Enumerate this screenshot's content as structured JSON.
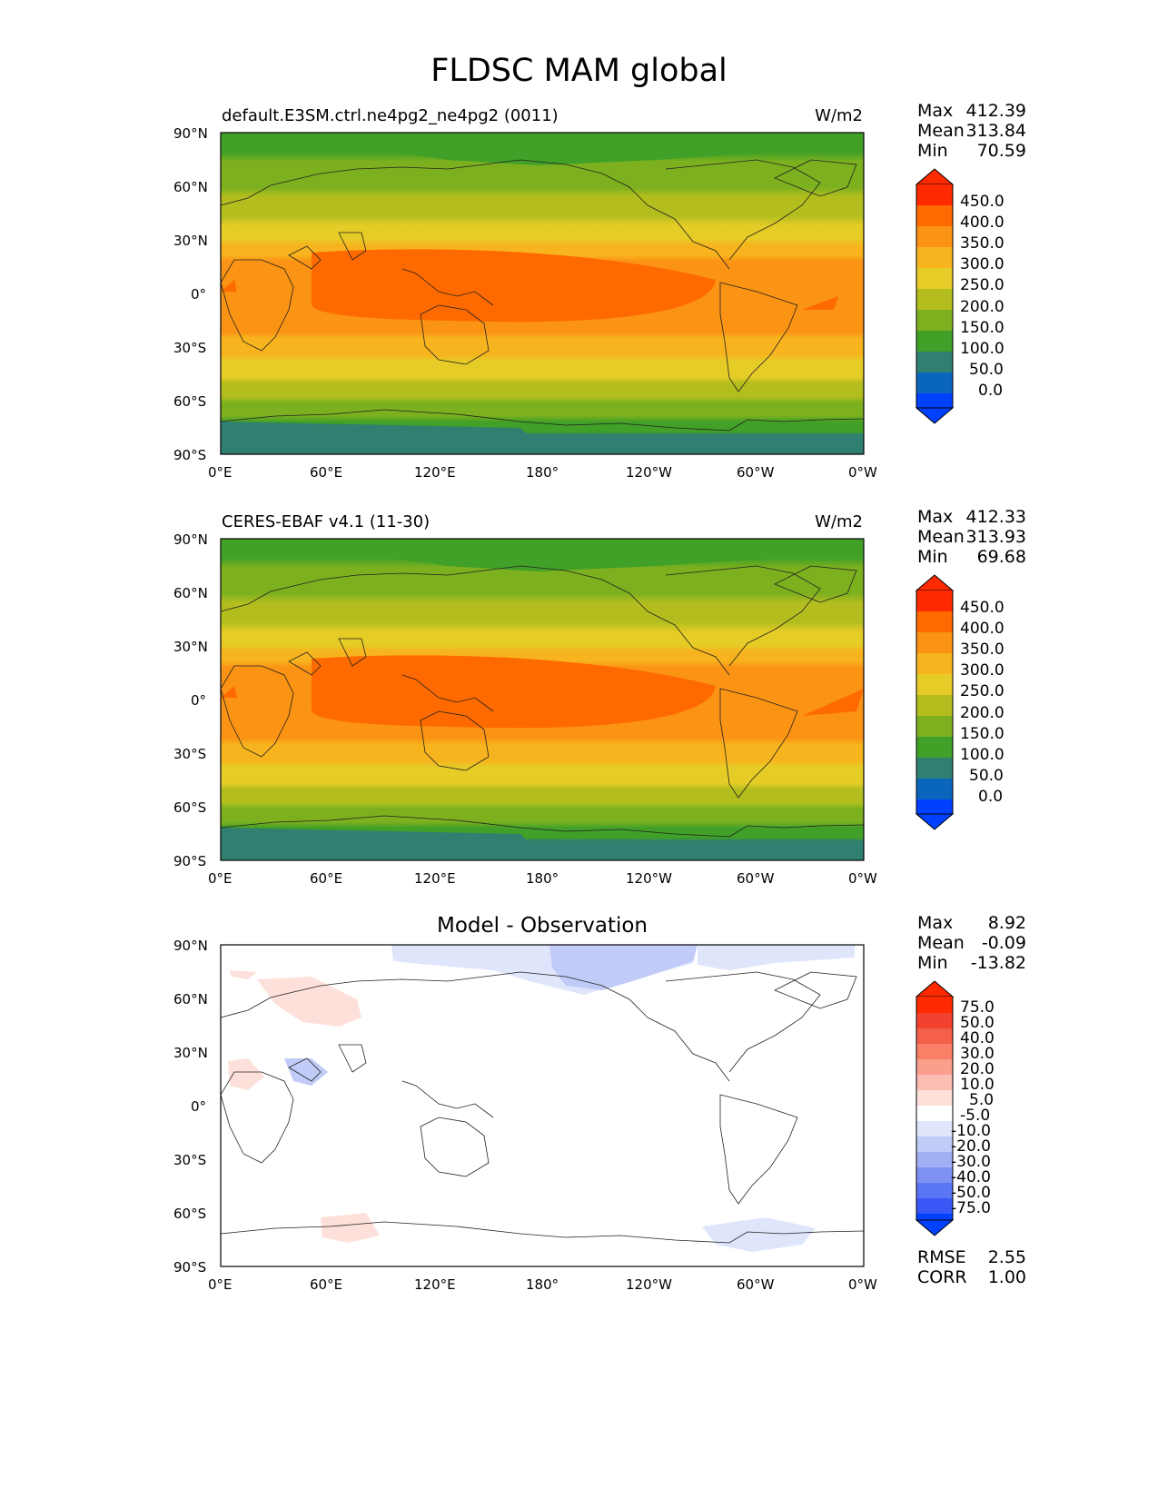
{
  "figure_title": "FLDSC MAM global",
  "panels": [
    {
      "id": "test",
      "title_left": "default.E3SM.ctrl.ne4pg2_ne4pg2 (0011)",
      "title_right": "W/m2",
      "title_center": "",
      "stats": [
        {
          "k": "Max",
          "v": "412.39"
        },
        {
          "k": "Mean",
          "v": "313.84"
        },
        {
          "k": "Min",
          "v": "70.59"
        }
      ],
      "colorbar_labels": [
        "450.0",
        "400.0",
        "350.0",
        "300.0",
        "250.0",
        "200.0",
        "150.0",
        "100.0",
        "50.0",
        "0.0"
      ],
      "colorbar_colors": [
        "#ff2a00",
        "#ff6a00",
        "#fb9314",
        "#f7b41e",
        "#e6cc27",
        "#b3be1e",
        "#7cb01f",
        "#40a027",
        "#2f8070",
        "#0a66bd",
        "#0040ff"
      ]
    },
    {
      "id": "reference",
      "title_left": "CERES-EBAF v4.1 (11-30)",
      "title_right": "W/m2",
      "title_center": "",
      "stats": [
        {
          "k": "Max",
          "v": "412.33"
        },
        {
          "k": "Mean",
          "v": "313.93"
        },
        {
          "k": "Min",
          "v": "69.68"
        }
      ],
      "colorbar_labels": [
        "450.0",
        "400.0",
        "350.0",
        "300.0",
        "250.0",
        "200.0",
        "150.0",
        "100.0",
        "50.0",
        "0.0"
      ],
      "colorbar_colors": [
        "#ff2a00",
        "#ff6a00",
        "#fb9314",
        "#f7b41e",
        "#e6cc27",
        "#b3be1e",
        "#7cb01f",
        "#40a027",
        "#2f8070",
        "#0a66bd",
        "#0040ff"
      ]
    },
    {
      "id": "difference",
      "title_left": "",
      "title_right": "",
      "title_center": "Model - Observation",
      "stats": [
        {
          "k": "Max",
          "v": "8.92"
        },
        {
          "k": "Mean",
          "v": "-0.09"
        },
        {
          "k": "Min",
          "v": "-13.82"
        }
      ],
      "colorbar_labels": [
        "75.0",
        "50.0",
        "40.0",
        "30.0",
        "20.0",
        "10.0",
        "5.0",
        "-5.0",
        "-10.0",
        "-20.0",
        "-30.0",
        "-40.0",
        "-50.0",
        "-75.0"
      ],
      "colorbar_colors": [
        "#ff2a00",
        "#f2412e",
        "#f5604a",
        "#f97f67",
        "#fb9f8d",
        "#fcbdb2",
        "#fde0d9",
        "#ffffff",
        "#dfe5fb",
        "#c0cbf7",
        "#a0b0f5",
        "#7d92f3",
        "#5b76f5",
        "#3957f7",
        "#0040ff"
      ],
      "extra_stats": [
        {
          "k": "RMSE",
          "v": "2.55"
        },
        {
          "k": "CORR",
          "v": "1.00"
        }
      ]
    }
  ],
  "axes": {
    "lat_ticks": [
      "90°N",
      "60°N",
      "30°N",
      "0°",
      "30°S",
      "60°S",
      "90°S"
    ],
    "lon_ticks": [
      "0°E",
      "60°E",
      "120°E",
      "180°",
      "120°W",
      "60°W",
      "0°W"
    ]
  },
  "chart_data": [
    {
      "type": "heatmap",
      "title": "default.E3SM.ctrl.ne4pg2_ne4pg2 (0011)",
      "units": "W/m2",
      "projection": "PlateCarree, 0°E to 360°E",
      "xlim": [
        0,
        360
      ],
      "ylim": [
        -90,
        90
      ],
      "levels": [
        0,
        50,
        100,
        150,
        200,
        250,
        300,
        350,
        400,
        450
      ],
      "max": 412.39,
      "mean": 313.84,
      "min": 70.59,
      "zonal_pattern": [
        {
          "lat": 80,
          "value": 150
        },
        {
          "lat": 60,
          "value": 200
        },
        {
          "lat": 45,
          "value": 250
        },
        {
          "lat": 30,
          "value": 330
        },
        {
          "lat": 0,
          "value": 410
        },
        {
          "lat": -30,
          "value": 330
        },
        {
          "lat": -45,
          "value": 280
        },
        {
          "lat": -60,
          "value": 200
        },
        {
          "lat": -80,
          "value": 100
        }
      ]
    },
    {
      "type": "heatmap",
      "title": "CERES-EBAF v4.1 (11-30)",
      "units": "W/m2",
      "projection": "PlateCarree, 0°E to 360°E",
      "xlim": [
        0,
        360
      ],
      "ylim": [
        -90,
        90
      ],
      "levels": [
        0,
        50,
        100,
        150,
        200,
        250,
        300,
        350,
        400,
        450
      ],
      "max": 412.33,
      "mean": 313.93,
      "min": 69.68,
      "zonal_pattern": [
        {
          "lat": 80,
          "value": 150
        },
        {
          "lat": 60,
          "value": 200
        },
        {
          "lat": 45,
          "value": 250
        },
        {
          "lat": 30,
          "value": 330
        },
        {
          "lat": 0,
          "value": 410
        },
        {
          "lat": -30,
          "value": 330
        },
        {
          "lat": -45,
          "value": 280
        },
        {
          "lat": -60,
          "value": 200
        },
        {
          "lat": -80,
          "value": 100
        }
      ]
    },
    {
      "type": "heatmap",
      "title": "Model - Observation",
      "projection": "PlateCarree, 0°E to 360°E",
      "xlim": [
        0,
        360
      ],
      "ylim": [
        -90,
        90
      ],
      "levels": [
        -75,
        -50,
        -40,
        -30,
        -20,
        -10,
        -5,
        5,
        10,
        20,
        30,
        40,
        50,
        75
      ],
      "max": 8.92,
      "mean": -0.09,
      "min": -13.82,
      "rmse": 2.55,
      "corr": 1.0
    }
  ]
}
